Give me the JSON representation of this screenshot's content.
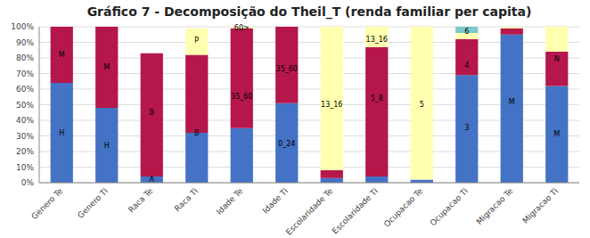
{
  "chart_data": {
    "type": "bar",
    "stacked": true,
    "title": "Gráfico 7 - Decomposição do Theil_T (renda familiar per capita)",
    "categories": [
      "Genero Te",
      "Genero Ti",
      "Raca Te",
      "Raca Ti",
      "Idade Te",
      "Idade Ti",
      "Escolaridade Te",
      "Escolaridade Ti",
      "Ocupacao Te",
      "Ocupacao Ti",
      "Migracao Te",
      "Migracao Ti"
    ],
    "series": [
      {
        "color": "#4472C4",
        "values": [
          64,
          48,
          4,
          32,
          35,
          51,
          3,
          4,
          2,
          69,
          95,
          62
        ]
      },
      {
        "color": "#B5174B",
        "values": [
          36,
          52,
          79,
          50,
          64,
          49,
          5,
          83,
          0,
          23,
          4,
          22
        ]
      },
      {
        "color": "#FFFFB0",
        "values": [
          0,
          0,
          0,
          17,
          1,
          0,
          92,
          13,
          98,
          4,
          1,
          16
        ]
      },
      {
        "color": "#7EC8C8",
        "values": [
          0,
          0,
          0,
          0,
          0,
          0,
          0,
          0,
          0,
          4,
          0,
          0
        ]
      }
    ],
    "annotations": [
      {
        "x": "Genero Te",
        "y": 32,
        "text": "H"
      },
      {
        "x": "Genero Te",
        "y": 82,
        "text": "M"
      },
      {
        "x": "Genero Ti",
        "y": 24,
        "text": "H"
      },
      {
        "x": "Genero Ti",
        "y": 74,
        "text": "M"
      },
      {
        "x": "Raca Te",
        "y": 2,
        "text": "A"
      },
      {
        "x": "Raca Te",
        "y": 45,
        "text": "B"
      },
      {
        "x": "Raca Ti",
        "y": 32,
        "text": "B"
      },
      {
        "x": "Raca Ti",
        "y": 91,
        "text": "P"
      },
      {
        "x": "Idade Te",
        "y": 55,
        "text": "35_60"
      },
      {
        "x": "Idade Te",
        "y": 99,
        "text": "60>"
      },
      {
        "x": "Idade Ti",
        "y": 25,
        "text": "0_24"
      },
      {
        "x": "Idade Ti",
        "y": 73,
        "text": "35_60"
      },
      {
        "x": "Escolaridade Te",
        "y": 50,
        "text": "13_16"
      },
      {
        "x": "Escolaridade Ti",
        "y": 92,
        "text": "13_16"
      },
      {
        "x": "Escolaridade Ti",
        "y": 54,
        "text": "5_8"
      },
      {
        "x": "Ocupacao Te",
        "y": 50,
        "text": "5"
      },
      {
        "x": "Ocupacao Ti",
        "y": 35,
        "text": "3"
      },
      {
        "x": "Ocupacao Ti",
        "y": 75,
        "text": "4"
      },
      {
        "x": "Ocupacao Ti",
        "y": 97,
        "text": "6"
      },
      {
        "x": "Migracao Te",
        "y": 52,
        "text": "M"
      },
      {
        "x": "Migracao Ti",
        "y": 31,
        "text": "M"
      },
      {
        "x": "Migracao Ti",
        "y": 79,
        "text": "N"
      }
    ],
    "ylim": [
      0,
      100
    ],
    "yticks": [
      {
        "value": 0,
        "label": "0%"
      },
      {
        "value": 10,
        "label": "10%"
      },
      {
        "value": 20,
        "label": "20%"
      },
      {
        "value": 30,
        "label": "30%"
      },
      {
        "value": 40,
        "label": "40%"
      },
      {
        "value": 50,
        "label": "50%"
      },
      {
        "value": 60,
        "label": "60%"
      },
      {
        "value": 70,
        "label": "70%"
      },
      {
        "value": 80,
        "label": "80%"
      },
      {
        "value": 90,
        "label": "90%"
      },
      {
        "value": 100,
        "label": "100%"
      }
    ],
    "grid": true
  }
}
